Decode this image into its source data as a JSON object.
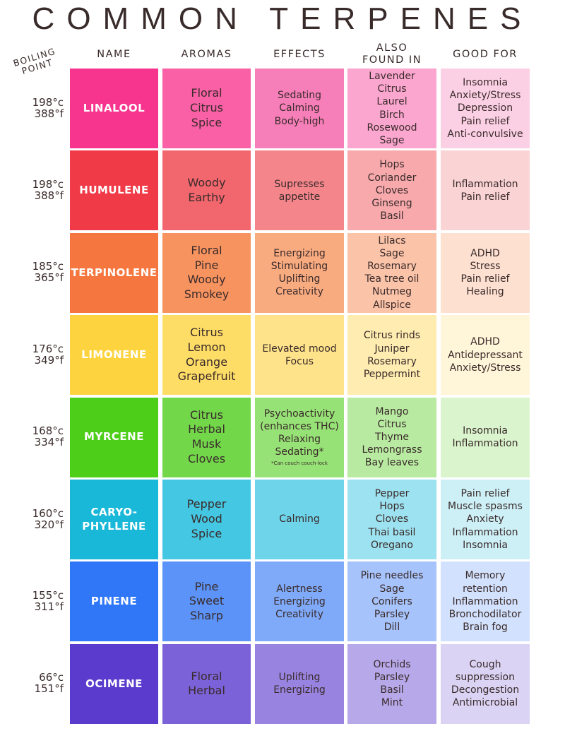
{
  "title": "COMMON TERPENES",
  "header": {
    "boiling_point": "BOILING POINT",
    "name": "NAME",
    "aromas": "AROMAS",
    "effects": "EFFECTS",
    "also_found_in": [
      "ALSO",
      "FOUND IN"
    ],
    "good_for": "GOOD FOR"
  },
  "rows": [
    {
      "celsius": "198°c",
      "fahrenheit": "388°f",
      "name": [
        "LINALOOL"
      ],
      "aromas": [
        "Floral",
        "Citrus",
        "Spice"
      ],
      "effects": [
        "Sedating",
        "Calming",
        "Body-high"
      ],
      "found_in": [
        "Lavender",
        "Citrus",
        "Laurel",
        "Birch",
        "Rosewood",
        "Sage"
      ],
      "good_for": [
        "Insomnia",
        "Anxiety/Stress",
        "Depression",
        "Pain relief",
        "Anti-convulsive"
      ]
    },
    {
      "celsius": "198°c",
      "fahrenheit": "388°f",
      "name": [
        "HUMULENE"
      ],
      "aromas": [
        "Woody",
        "Earthy"
      ],
      "effects": [
        "Supresses",
        "appetite"
      ],
      "found_in": [
        "Hops",
        "Coriander",
        "Cloves",
        "Ginseng",
        "Basil"
      ],
      "good_for": [
        "Inflammation",
        "Pain relief"
      ]
    },
    {
      "celsius": "185°c",
      "fahrenheit": "365°f",
      "name": [
        "TERPINOLENE"
      ],
      "aromas": [
        "Floral",
        "Pine",
        "Woody",
        "Smokey"
      ],
      "effects": [
        "Energizing",
        "Stimulating",
        "Uplifting",
        "Creativity"
      ],
      "found_in": [
        "Lilacs",
        "Sage",
        "Rosemary",
        "Tea tree oil",
        "Nutmeg",
        "Allspice"
      ],
      "good_for": [
        "ADHD",
        "Stress",
        "Pain relief",
        "Healing"
      ]
    },
    {
      "celsius": "176°c",
      "fahrenheit": "349°f",
      "name": [
        "LIMONENE"
      ],
      "aromas": [
        "Citrus",
        "Lemon",
        "Orange",
        "Grapefruit"
      ],
      "effects": [
        "Elevated mood",
        "Focus"
      ],
      "found_in": [
        "Citrus rinds",
        "Juniper",
        "Rosemary",
        "Peppermint"
      ],
      "good_for": [
        "ADHD",
        "Antidepressant",
        "Anxiety/Stress"
      ]
    },
    {
      "celsius": "168°c",
      "fahrenheit": "334°f",
      "name": [
        "MYRCENE"
      ],
      "aromas": [
        "Citrus",
        "Herbal",
        "Musk",
        "Cloves"
      ],
      "effects": [
        "Psychoactivity",
        "(enhances THC)",
        "Relaxing",
        "Sedating*"
      ],
      "note": "*Can couch couch-lock",
      "found_in": [
        "Mango",
        "Citrus",
        "Thyme",
        "Lemongrass",
        "Bay leaves"
      ],
      "good_for": [
        "Insomnia",
        "Inflammation"
      ]
    },
    {
      "celsius": "160°c",
      "fahrenheit": "320°f",
      "name": [
        "CARYO-",
        "PHYLLENE"
      ],
      "aromas": [
        "Pepper",
        "Wood",
        "Spice"
      ],
      "effects": [
        "Calming"
      ],
      "found_in": [
        "Pepper",
        "Hops",
        "Cloves",
        "Thai basil",
        "Oregano"
      ],
      "good_for": [
        "Pain relief",
        "Muscle spasms",
        "Anxiety",
        "Inflammation",
        "Insomnia"
      ]
    },
    {
      "celsius": "155°c",
      "fahrenheit": "311°f",
      "name": [
        "PINENE"
      ],
      "aromas": [
        "Pine",
        "Sweet",
        "Sharp"
      ],
      "effects": [
        "Alertness",
        "Energizing",
        "Creativity"
      ],
      "found_in": [
        "Pine needles",
        "Sage",
        "Conifers",
        "Parsley",
        "Dill"
      ],
      "good_for": [
        "Memory",
        "retention",
        "Inflammation",
        "Bronchodilator",
        "Brain fog"
      ]
    },
    {
      "celsius": "66°c",
      "fahrenheit": "151°f",
      "name": [
        "OCIMENE"
      ],
      "aromas": [
        "Floral",
        "Herbal"
      ],
      "effects": [
        "Uplifting",
        "Energizing"
      ],
      "found_in": [
        "Orchids",
        "Parsley",
        "Basil",
        "Mint"
      ],
      "good_for": [
        "Cough",
        "suppression",
        "Decongestion",
        "Antimicrobial"
      ]
    }
  ]
}
